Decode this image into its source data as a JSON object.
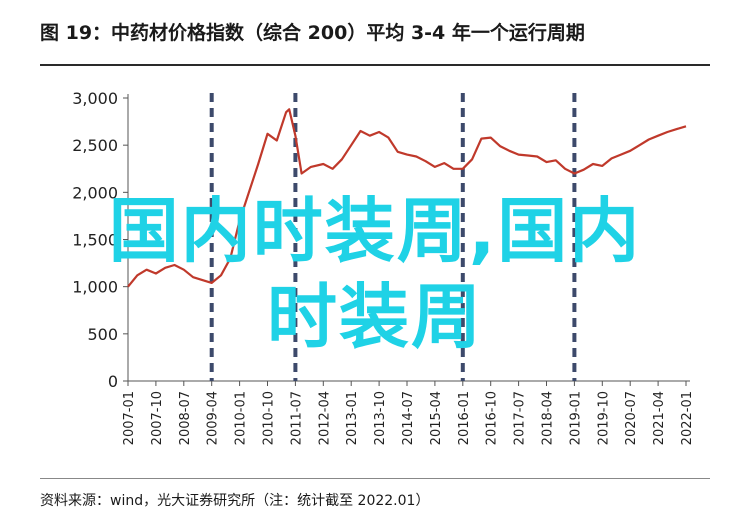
{
  "title": "图 19：中药材价格指数（综合 200）平均 3-4 年一个运行周期",
  "source": "资料来源：wind，光大证券研究所（注：统计截至 2022.01）",
  "watermark": {
    "line1": "国内时装周,国内",
    "line2": "时装周",
    "color": "#1fd2e6"
  },
  "chart_data": {
    "type": "line",
    "title": "",
    "xlabel": "",
    "ylabel": "",
    "ylim": [
      0,
      3000
    ],
    "yticks": [
      "0",
      "500",
      "1,000",
      "1,500",
      "2,000",
      "2,500",
      "3,000"
    ],
    "ytick_values": [
      0,
      500,
      1000,
      1500,
      2000,
      2500,
      3000
    ],
    "xticks": [
      "2007-01",
      "2007-10",
      "2008-07",
      "2009-04",
      "2010-01",
      "2010-10",
      "2011-07",
      "2012-04",
      "2013-01",
      "2013-10",
      "2014-07",
      "2015-04",
      "2016-01",
      "2016-10",
      "2017-07",
      "2018-04",
      "2019-01",
      "2019-10",
      "2020-07",
      "2021-04",
      "2022-01"
    ],
    "line_color": "#c0392b",
    "cycle_line_color": "#3d4a6b",
    "cycle_lines": [
      "2009-04",
      "2011-07",
      "2016-01",
      "2019-01"
    ],
    "series": [
      {
        "values": [
          [
            "2007-01",
            1000
          ],
          [
            "2007-04",
            1120
          ],
          [
            "2007-07",
            1180
          ],
          [
            "2007-10",
            1140
          ],
          [
            "2008-01",
            1200
          ],
          [
            "2008-04",
            1230
          ],
          [
            "2008-07",
            1180
          ],
          [
            "2008-10",
            1100
          ],
          [
            "2009-01",
            1070
          ],
          [
            "2009-04",
            1040
          ],
          [
            "2009-07",
            1120
          ],
          [
            "2009-10",
            1300
          ],
          [
            "2010-01",
            1700
          ],
          [
            "2010-04",
            2000
          ],
          [
            "2010-07",
            2300
          ],
          [
            "2010-10",
            2620
          ],
          [
            "2011-01",
            2550
          ],
          [
            "2011-04",
            2850
          ],
          [
            "2011-05",
            2880
          ],
          [
            "2011-07",
            2600
          ],
          [
            "2011-09",
            2200
          ],
          [
            "2011-12",
            2270
          ],
          [
            "2012-04",
            2300
          ],
          [
            "2012-07",
            2250
          ],
          [
            "2012-10",
            2350
          ],
          [
            "2013-01",
            2500
          ],
          [
            "2013-04",
            2650
          ],
          [
            "2013-07",
            2600
          ],
          [
            "2013-10",
            2640
          ],
          [
            "2014-01",
            2580
          ],
          [
            "2014-04",
            2430
          ],
          [
            "2014-07",
            2400
          ],
          [
            "2014-10",
            2380
          ],
          [
            "2015-01",
            2330
          ],
          [
            "2015-04",
            2270
          ],
          [
            "2015-07",
            2310
          ],
          [
            "2015-10",
            2250
          ],
          [
            "2016-01",
            2250
          ],
          [
            "2016-04",
            2350
          ],
          [
            "2016-07",
            2570
          ],
          [
            "2016-10",
            2580
          ],
          [
            "2017-01",
            2490
          ],
          [
            "2017-04",
            2440
          ],
          [
            "2017-07",
            2400
          ],
          [
            "2017-10",
            2390
          ],
          [
            "2018-01",
            2380
          ],
          [
            "2018-04",
            2320
          ],
          [
            "2018-07",
            2340
          ],
          [
            "2018-10",
            2250
          ],
          [
            "2019-01",
            2200
          ],
          [
            "2019-04",
            2240
          ],
          [
            "2019-07",
            2300
          ],
          [
            "2019-10",
            2280
          ],
          [
            "2020-01",
            2360
          ],
          [
            "2020-04",
            2400
          ],
          [
            "2020-07",
            2440
          ],
          [
            "2020-10",
            2500
          ],
          [
            "2021-01",
            2560
          ],
          [
            "2021-04",
            2600
          ],
          [
            "2021-07",
            2640
          ],
          [
            "2021-10",
            2670
          ],
          [
            "2022-01",
            2700
          ]
        ]
      }
    ]
  }
}
